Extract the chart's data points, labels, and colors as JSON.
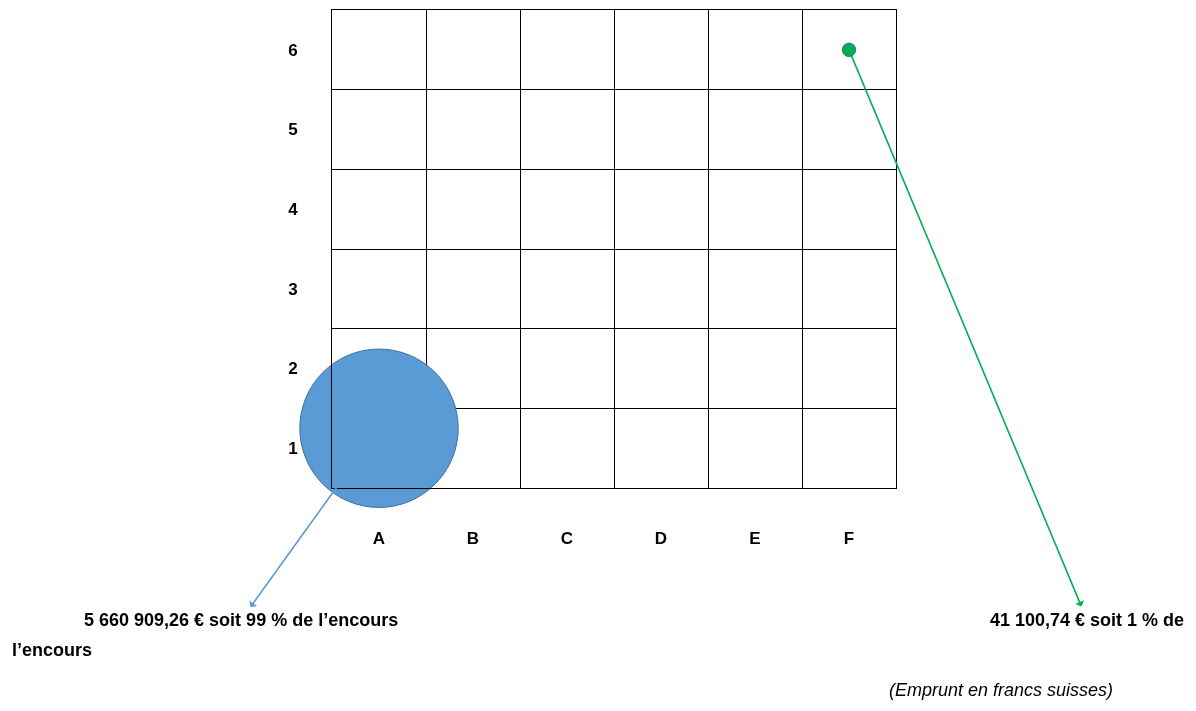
{
  "chart_data": {
    "type": "bubble",
    "categories": [
      "A",
      "B",
      "C",
      "D",
      "E",
      "F"
    ],
    "ylim": [
      0.5,
      6.5
    ],
    "yticks": [
      1,
      2,
      3,
      4,
      5,
      6
    ],
    "grid": true,
    "series": [
      {
        "x": [
          "A",
          "F"
        ],
        "values": [
          1.25,
          6
        ],
        "sizes": [
          1,
          0.00726
        ],
        "colors": [
          "#5b9bd5",
          "#00b050"
        ]
      }
    ],
    "annotations": [
      {
        "text": "5 660 909,26 € soit 99 % de l’encours",
        "x": "A",
        "y": 1.25
      },
      {
        "text": "41 100,74 € soit 1 % de",
        "x": "F",
        "y": 6
      },
      "l’encours",
      "(Emprunt en francs suisses)"
    ]
  }
}
